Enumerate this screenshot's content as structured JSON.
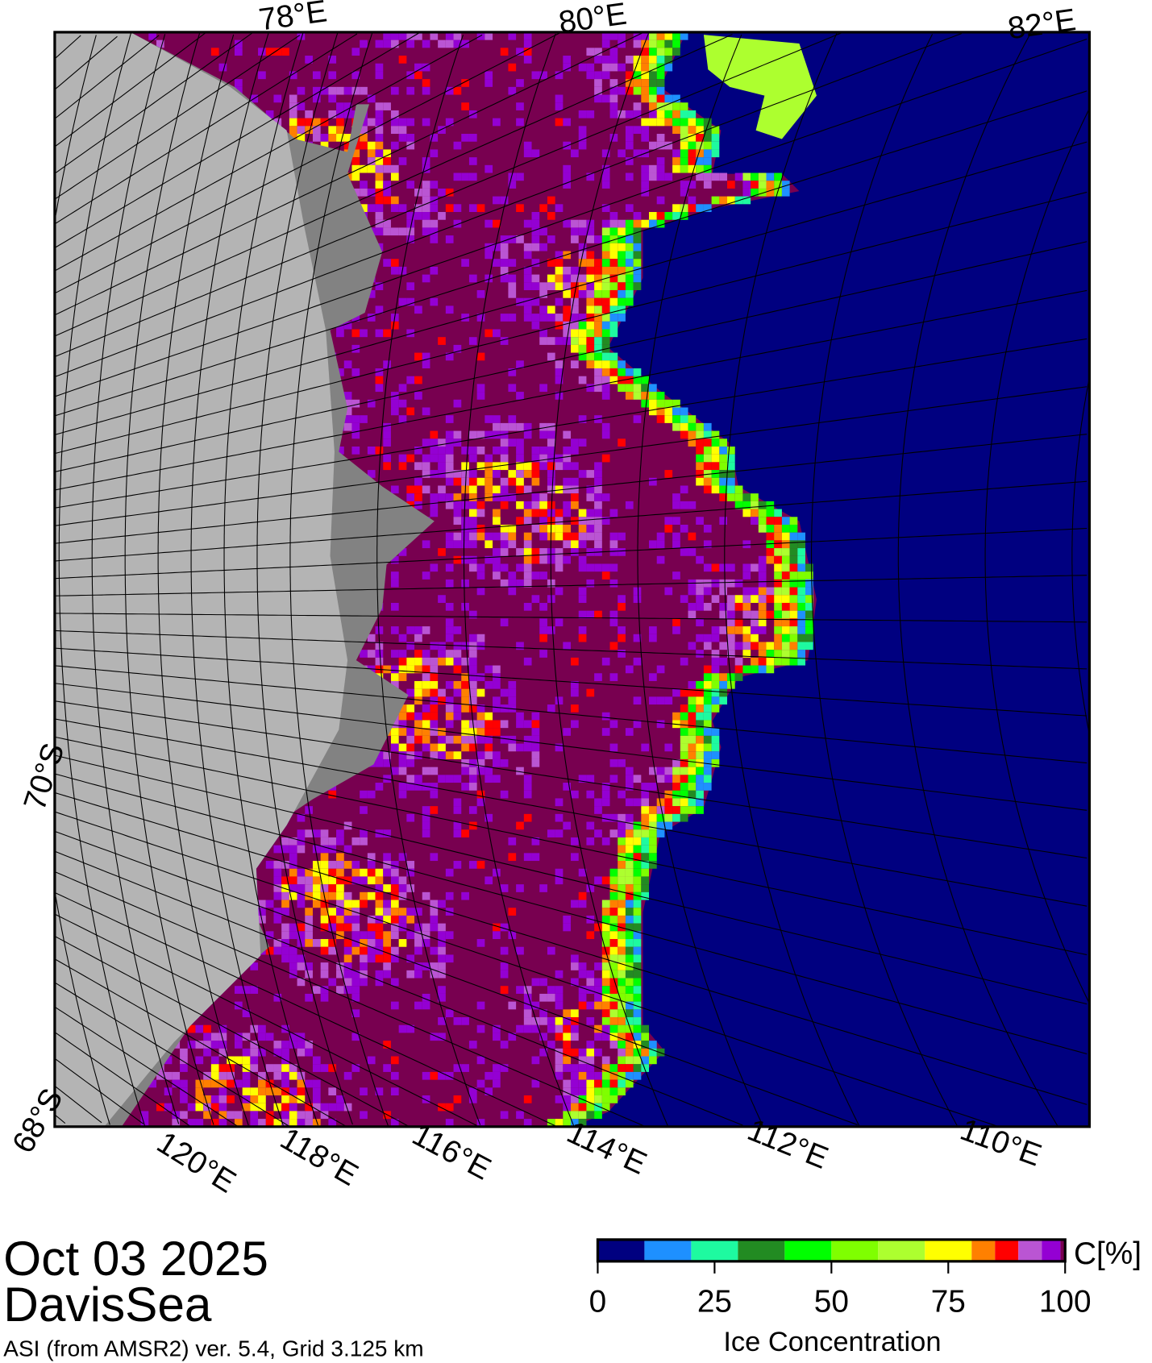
{
  "map": {
    "top_labels": [
      "78°E",
      "80°E",
      "82°E"
    ],
    "bottom_labels": [
      "120°E",
      "118°E",
      "116°E",
      "114°E",
      "112°E",
      "110°E"
    ],
    "left_labels": [
      "70°S",
      "68°S"
    ],
    "colors": {
      "open_water": "#000080",
      "land": "#b4b4b4",
      "land_shelf": "#828282",
      "full_ice": "#780050"
    }
  },
  "caption": {
    "date": "Oct 03 2025",
    "region": "DavisSea",
    "source": "ASI (from AMSR2) ver. 5.4,  Grid 3.125 km"
  },
  "colorbar": {
    "unit_label": "C[%]",
    "title": "Ice Concentration",
    "tick_labels": [
      "0",
      "25",
      "50",
      "75",
      "100"
    ],
    "range": [
      0,
      100
    ],
    "bins": [
      {
        "from": 0,
        "to": 10,
        "color": "#000080"
      },
      {
        "from": 10,
        "to": 20,
        "color": "#1e90ff"
      },
      {
        "from": 20,
        "to": 30,
        "color": "#1efaa0"
      },
      {
        "from": 30,
        "to": 40,
        "color": "#228b22"
      },
      {
        "from": 40,
        "to": 50,
        "color": "#00ff00"
      },
      {
        "from": 50,
        "to": 60,
        "color": "#7fff00"
      },
      {
        "from": 60,
        "to": 70,
        "color": "#adff2f"
      },
      {
        "from": 70,
        "to": 80,
        "color": "#ffff00"
      },
      {
        "from": 80,
        "to": 85,
        "color": "#ff8000"
      },
      {
        "from": 85,
        "to": 90,
        "color": "#ff0000"
      },
      {
        "from": 90,
        "to": 95,
        "color": "#ba55d3"
      },
      {
        "from": 95,
        "to": 99,
        "color": "#9400d3"
      },
      {
        "from": 99,
        "to": 100,
        "color": "#780050"
      }
    ]
  }
}
